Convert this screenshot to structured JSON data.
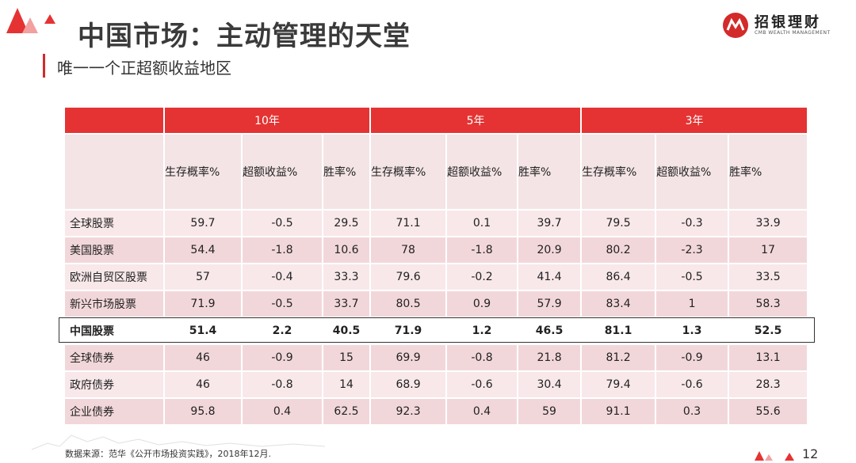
{
  "header": {
    "title": "中国市场：主动管理的天堂",
    "subtitle": "唯一一个正超额收益地区",
    "logo_text": "招银理财",
    "logo_sub": "CMB WEALTH MANAGEMENT"
  },
  "table": {
    "corner": "",
    "periods": [
      "10年",
      "5年",
      "3年"
    ],
    "metrics": [
      "生存概率%",
      "超额收益%",
      "胜率%"
    ],
    "rows": [
      {
        "label": "全球股票",
        "values": [
          "59.7",
          "-0.5",
          "29.5",
          "71.1",
          "0.1",
          "39.7",
          "79.5",
          "-0.3",
          "33.9"
        ]
      },
      {
        "label": "美国股票",
        "values": [
          "54.4",
          "-1.8",
          "10.6",
          "78",
          "-1.8",
          "20.9",
          "80.2",
          "-2.3",
          "17"
        ]
      },
      {
        "label": "欧洲自贸区股票",
        "values": [
          "57",
          "-0.4",
          "33.3",
          "79.6",
          "-0.2",
          "41.4",
          "86.4",
          "-0.5",
          "33.5"
        ]
      },
      {
        "label": "新兴市场股票",
        "values": [
          "71.9",
          "-0.5",
          "33.7",
          "80.5",
          "0.9",
          "57.9",
          "83.4",
          "1",
          "58.3"
        ]
      },
      {
        "label": "中国股票",
        "values": [
          "51.4",
          "2.2",
          "40.5",
          "71.9",
          "1.2",
          "46.5",
          "81.1",
          "1.3",
          "52.5"
        ],
        "highlight": true
      },
      {
        "label": "全球债券",
        "values": [
          "46",
          "-0.9",
          "15",
          "69.9",
          "-0.8",
          "21.8",
          "81.2",
          "-0.9",
          "13.1"
        ]
      },
      {
        "label": "政府债券",
        "values": [
          "46",
          "-0.8",
          "14",
          "68.9",
          "-0.6",
          "30.4",
          "79.4",
          "-0.6",
          "28.3"
        ]
      },
      {
        "label": "企业债券",
        "values": [
          "95.8",
          "0.4",
          "62.5",
          "92.3",
          "0.4",
          "59",
          "91.1",
          "0.3",
          "55.6"
        ]
      }
    ]
  },
  "footer": {
    "source": "数据来源：范华《公开市场投资实践》，2018年12月.",
    "page": "12"
  },
  "colors": {
    "accent": "#e53333",
    "row_light": "#f8e8ea",
    "row_dark": "#f2d7da"
  }
}
